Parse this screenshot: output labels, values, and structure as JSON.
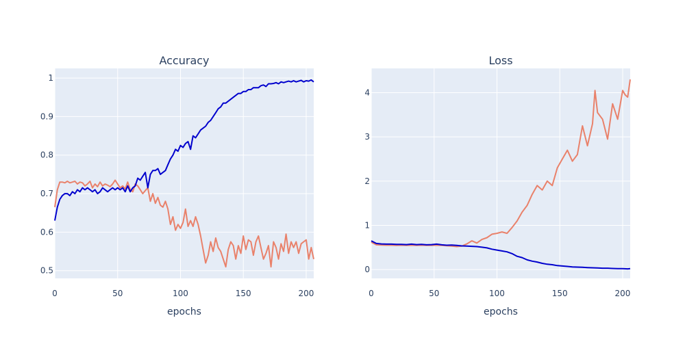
{
  "chart_data": [
    {
      "type": "line",
      "title": "Accuracy",
      "xlabel": "epochs",
      "ylabel": "",
      "xlim": [
        0,
        206
      ],
      "ylim": [
        0.48,
        1.025
      ],
      "x_ticks": [
        0,
        50,
        100,
        150,
        200
      ],
      "x_tick_labels": [
        "0",
        "50",
        "100",
        "150",
        "200"
      ],
      "y_ticks": [
        0.5,
        0.6,
        0.7,
        0.8,
        0.9,
        1
      ],
      "y_tick_labels": [
        "0.5",
        "0.6",
        "0.7",
        "0.8",
        "0.9",
        "1"
      ],
      "grid": true,
      "legend": "none",
      "series": [
        {
          "color": "#0000cd",
          "x": [
            0,
            2,
            4,
            6,
            8,
            10,
            12,
            14,
            16,
            18,
            20,
            22,
            24,
            26,
            28,
            30,
            32,
            34,
            36,
            38,
            40,
            42,
            44,
            46,
            48,
            50,
            52,
            54,
            56,
            58,
            60,
            62,
            64,
            66,
            68,
            70,
            72,
            74,
            76,
            78,
            80,
            82,
            84,
            86,
            88,
            90,
            92,
            94,
            96,
            98,
            100,
            102,
            104,
            106,
            108,
            110,
            112,
            114,
            116,
            118,
            120,
            122,
            124,
            126,
            128,
            130,
            132,
            134,
            136,
            138,
            140,
            142,
            144,
            146,
            148,
            150,
            152,
            154,
            156,
            158,
            160,
            162,
            164,
            166,
            168,
            170,
            172,
            174,
            176,
            178,
            180,
            182,
            184,
            186,
            188,
            190,
            192,
            194,
            196,
            198,
            200,
            202,
            204,
            206
          ],
          "y": [
            0.63,
            0.665,
            0.685,
            0.695,
            0.7,
            0.7,
            0.695,
            0.705,
            0.7,
            0.71,
            0.705,
            0.715,
            0.71,
            0.715,
            0.71,
            0.705,
            0.71,
            0.7,
            0.705,
            0.715,
            0.71,
            0.705,
            0.71,
            0.715,
            0.71,
            0.715,
            0.71,
            0.715,
            0.705,
            0.72,
            0.705,
            0.715,
            0.72,
            0.74,
            0.735,
            0.745,
            0.755,
            0.715,
            0.75,
            0.76,
            0.76,
            0.765,
            0.75,
            0.755,
            0.76,
            0.775,
            0.79,
            0.8,
            0.815,
            0.81,
            0.825,
            0.82,
            0.83,
            0.835,
            0.815,
            0.85,
            0.845,
            0.855,
            0.865,
            0.87,
            0.875,
            0.885,
            0.89,
            0.9,
            0.91,
            0.92,
            0.925,
            0.935,
            0.935,
            0.94,
            0.945,
            0.95,
            0.955,
            0.96,
            0.96,
            0.965,
            0.965,
            0.97,
            0.97,
            0.975,
            0.975,
            0.975,
            0.98,
            0.982,
            0.978,
            0.985,
            0.985,
            0.986,
            0.988,
            0.985,
            0.99,
            0.988,
            0.99,
            0.992,
            0.99,
            0.993,
            0.99,
            0.992,
            0.994,
            0.99,
            0.993,
            0.992,
            0.995,
            0.99
          ]
        },
        {
          "color": "#e9816a",
          "x": [
            0,
            2,
            4,
            6,
            8,
            10,
            12,
            14,
            16,
            18,
            20,
            22,
            24,
            26,
            28,
            30,
            32,
            34,
            36,
            38,
            40,
            42,
            44,
            46,
            48,
            50,
            52,
            54,
            56,
            58,
            60,
            62,
            64,
            66,
            68,
            70,
            72,
            74,
            76,
            78,
            80,
            82,
            84,
            86,
            88,
            90,
            92,
            94,
            96,
            98,
            100,
            102,
            104,
            106,
            108,
            110,
            112,
            114,
            116,
            118,
            120,
            122,
            124,
            126,
            128,
            130,
            132,
            134,
            136,
            138,
            140,
            142,
            144,
            146,
            148,
            150,
            152,
            154,
            156,
            158,
            160,
            162,
            164,
            166,
            168,
            170,
            172,
            174,
            176,
            178,
            180,
            182,
            184,
            186,
            188,
            190,
            192,
            194,
            196,
            198,
            200,
            202,
            204,
            206
          ],
          "y": [
            0.665,
            0.71,
            0.73,
            0.73,
            0.728,
            0.732,
            0.728,
            0.73,
            0.732,
            0.725,
            0.73,
            0.728,
            0.72,
            0.725,
            0.732,
            0.715,
            0.725,
            0.718,
            0.73,
            0.72,
            0.725,
            0.722,
            0.718,
            0.725,
            0.735,
            0.725,
            0.715,
            0.72,
            0.712,
            0.73,
            0.71,
            0.705,
            0.725,
            0.72,
            0.71,
            0.7,
            0.708,
            0.715,
            0.68,
            0.7,
            0.675,
            0.69,
            0.67,
            0.665,
            0.68,
            0.66,
            0.62,
            0.64,
            0.605,
            0.62,
            0.61,
            0.625,
            0.66,
            0.615,
            0.63,
            0.615,
            0.64,
            0.62,
            0.59,
            0.555,
            0.52,
            0.54,
            0.575,
            0.55,
            0.585,
            0.56,
            0.55,
            0.53,
            0.51,
            0.555,
            0.575,
            0.565,
            0.53,
            0.565,
            0.545,
            0.59,
            0.555,
            0.58,
            0.575,
            0.54,
            0.575,
            0.59,
            0.56,
            0.53,
            0.545,
            0.565,
            0.51,
            0.575,
            0.56,
            0.53,
            0.57,
            0.55,
            0.595,
            0.545,
            0.575,
            0.56,
            0.575,
            0.545,
            0.57,
            0.575,
            0.58,
            0.53,
            0.56,
            0.53
          ]
        }
      ]
    },
    {
      "type": "line",
      "title": "Loss",
      "xlabel": "epochs",
      "ylabel": "",
      "xlim": [
        0,
        206
      ],
      "ylim": [
        -0.2,
        4.55
      ],
      "x_ticks": [
        0,
        50,
        100,
        150,
        200
      ],
      "x_tick_labels": [
        "0",
        "50",
        "100",
        "150",
        "200"
      ],
      "y_ticks": [
        0,
        1,
        2,
        3,
        4
      ],
      "y_tick_labels": [
        "0",
        "1",
        "2",
        "3",
        "4"
      ],
      "grid": true,
      "legend": "none",
      "series": [
        {
          "color": "#0000cd",
          "x": [
            0,
            4,
            8,
            12,
            16,
            20,
            24,
            28,
            32,
            36,
            40,
            44,
            48,
            52,
            56,
            60,
            64,
            68,
            72,
            76,
            80,
            84,
            88,
            92,
            96,
            100,
            104,
            108,
            112,
            116,
            120,
            124,
            128,
            132,
            136,
            140,
            144,
            148,
            152,
            156,
            160,
            164,
            168,
            172,
            176,
            180,
            184,
            188,
            192,
            196,
            200,
            204,
            206
          ],
          "y": [
            0.65,
            0.59,
            0.58,
            0.575,
            0.575,
            0.57,
            0.57,
            0.565,
            0.575,
            0.565,
            0.57,
            0.56,
            0.565,
            0.575,
            0.56,
            0.55,
            0.555,
            0.545,
            0.535,
            0.53,
            0.525,
            0.52,
            0.505,
            0.49,
            0.46,
            0.44,
            0.42,
            0.4,
            0.36,
            0.3,
            0.27,
            0.22,
            0.19,
            0.17,
            0.14,
            0.12,
            0.11,
            0.09,
            0.08,
            0.07,
            0.06,
            0.055,
            0.05,
            0.045,
            0.04,
            0.035,
            0.03,
            0.03,
            0.025,
            0.02,
            0.02,
            0.015,
            0.02
          ]
        },
        {
          "color": "#e9816a",
          "x": [
            0,
            4,
            8,
            12,
            16,
            20,
            24,
            28,
            32,
            36,
            40,
            44,
            48,
            52,
            56,
            60,
            64,
            68,
            72,
            76,
            80,
            84,
            88,
            92,
            96,
            100,
            104,
            108,
            112,
            116,
            120,
            124,
            128,
            132,
            136,
            140,
            144,
            148,
            152,
            156,
            160,
            164,
            168,
            172,
            176,
            178,
            180,
            184,
            188,
            192,
            196,
            200,
            202,
            204,
            206
          ],
          "y": [
            0.62,
            0.56,
            0.555,
            0.55,
            0.55,
            0.545,
            0.55,
            0.548,
            0.55,
            0.545,
            0.55,
            0.548,
            0.545,
            0.55,
            0.545,
            0.54,
            0.53,
            0.52,
            0.53,
            0.58,
            0.65,
            0.6,
            0.68,
            0.72,
            0.8,
            0.82,
            0.85,
            0.82,
            0.95,
            1.1,
            1.3,
            1.45,
            1.7,
            1.9,
            1.8,
            2.0,
            1.9,
            2.3,
            2.5,
            2.7,
            2.45,
            2.6,
            3.25,
            2.8,
            3.3,
            4.05,
            3.55,
            3.4,
            2.95,
            3.75,
            3.4,
            4.05,
            3.95,
            3.9,
            4.3
          ]
        }
      ]
    }
  ]
}
